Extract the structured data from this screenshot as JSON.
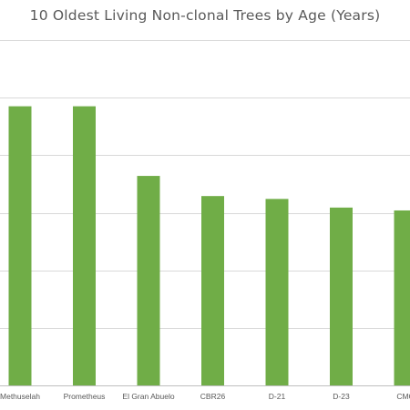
{
  "chart_data": {
    "type": "bar",
    "title": "10 Oldest Living Non-clonal Trees by Age (Years)",
    "categories": [
      "Methuselah",
      "Prometheus",
      "El Gran Abuelo",
      "CBR26",
      "D-21",
      "D-23",
      "CMC"
    ],
    "values": [
      4850,
      4850,
      3640,
      3290,
      3240,
      3090,
      3040
    ],
    "ylim": [
      0,
      6000
    ],
    "grid": true,
    "bar_color": "#70ad47",
    "grid_color": "#d9d9d9",
    "axis_color": "#bfbfbf",
    "text_color": "#595959"
  }
}
